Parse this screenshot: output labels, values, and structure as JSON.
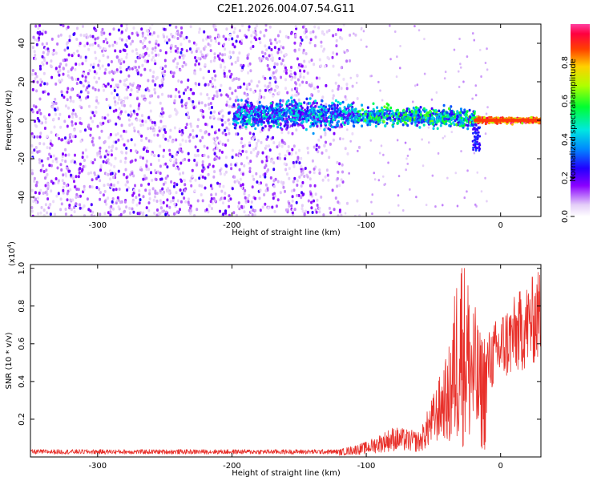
{
  "chart_data": [
    {
      "type": "heatmap",
      "title": "C2E1.2026.004.07.54.G11",
      "xlabel": "Height of straight line (km)",
      "ylabel": "Frequency (Hz)",
      "xlim": [
        -350,
        30
      ],
      "ylim": [
        -50,
        50
      ],
      "xticks": [
        -300,
        -200,
        -100,
        0
      ],
      "yticks": [
        -40,
        -20,
        0,
        20,
        40
      ],
      "colorbar": {
        "label": "Normalized spectral amplitude",
        "range": [
          0,
          1
        ],
        "ticks": [
          "0.0",
          "0.2",
          "0.4",
          "0.6",
          "0.8"
        ],
        "tick_values": [
          0,
          0.2,
          0.4,
          0.6,
          0.8
        ]
      },
      "description_regions": [
        {
          "x_range": [
            -350,
            -115
          ],
          "frequency_spread": "broadband -50 to 50 Hz",
          "amplitude": [
            0.05,
            0.2
          ]
        },
        {
          "x_range": [
            -200,
            -20
          ],
          "frequency_center": 2,
          "frequency_spread": 8,
          "amplitude": [
            0.2,
            0.6
          ]
        },
        {
          "x_range": [
            -20,
            30
          ],
          "frequency_center": 0,
          "frequency_spread": 1,
          "amplitude": [
            0.7,
            1.0
          ]
        }
      ]
    },
    {
      "type": "line",
      "series": [
        {
          "name": "SNR",
          "color": "#e8302a"
        }
      ],
      "xlabel": "Height of straight line (km)",
      "ylabel": "SNR (10 * v/v)",
      "yscale_label_base": "(x10",
      "yscale_label_exp": "4",
      "yscale_label_end": ")",
      "xlim": [
        -350,
        30
      ],
      "ylim": [
        0,
        1.02
      ],
      "xticks": [
        -300,
        -200,
        -100,
        0
      ],
      "yticks": [
        0.2,
        0.4,
        0.6,
        0.8,
        1.0
      ],
      "ytick_labels": [
        "0.2",
        "0.4",
        "0.6",
        "0.8",
        "1.0"
      ],
      "key_points": [
        {
          "x": -350,
          "y": 0.02
        },
        {
          "x": -120,
          "y": 0.03
        },
        {
          "x": -100,
          "y": 0.06
        },
        {
          "x": -80,
          "y": 0.12
        },
        {
          "x": -60,
          "y": 0.1
        },
        {
          "x": -40,
          "y": 0.4
        },
        {
          "x": -30,
          "y": 1.0
        },
        {
          "x": -15,
          "y": 0.55
        },
        {
          "x": 0,
          "y": 0.7
        },
        {
          "x": 30,
          "y": 0.92
        }
      ]
    }
  ]
}
